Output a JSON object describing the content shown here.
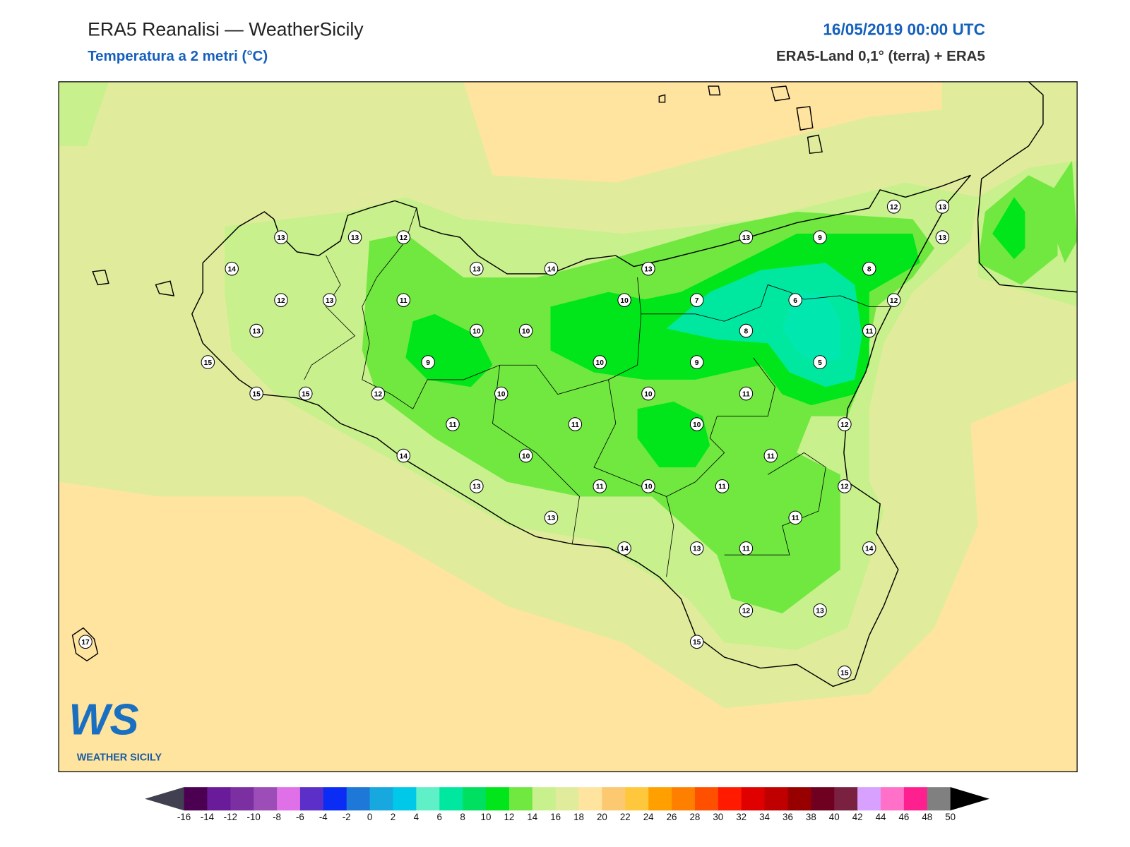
{
  "header": {
    "title": "ERA5 Reanalisi — WeatherSicily",
    "subtitle": "Temperatura a 2 metri (°C)",
    "date": "16/05/2019 00:00 UTC",
    "source": "ERA5-Land 0,1° (terra) + ERA5"
  },
  "logo": {
    "mark": "WS",
    "name": "WEATHER SICILY"
  },
  "stations": [
    13,
    13,
    12,
    14,
    12,
    13,
    11,
    13,
    15,
    15,
    15,
    12,
    9,
    10,
    10,
    13,
    14,
    13,
    10,
    10,
    10,
    11,
    11,
    14,
    10,
    13,
    13,
    11,
    10,
    14,
    13,
    11,
    11,
    11,
    10,
    10,
    11,
    9,
    7,
    8,
    6,
    5,
    9,
    13,
    8,
    12,
    13,
    13,
    12,
    11,
    12,
    12,
    11,
    14,
    12,
    13,
    15,
    15,
    17
  ],
  "colorbar": {
    "ticks": [
      -16,
      -14,
      -12,
      -10,
      -8,
      -6,
      -4,
      -2,
      0,
      2,
      4,
      6,
      8,
      10,
      12,
      14,
      16,
      18,
      20,
      22,
      24,
      26,
      28,
      30,
      32,
      34,
      36,
      38,
      40,
      42,
      44,
      46,
      48,
      50
    ],
    "colors": [
      "#4b0052",
      "#6a1b9a",
      "#7b2fa0",
      "#9c4db8",
      "#e070e8",
      "#5b2fc8",
      "#0a2cf5",
      "#1e78d8",
      "#18a8e0",
      "#00c8e8",
      "#60f0c8",
      "#00e8a0",
      "#00e060",
      "#00e61a",
      "#70e840",
      "#c8f08c",
      "#e0ec9c",
      "#ffe4a0",
      "#fcc870",
      "#ffc83c",
      "#ffa000",
      "#ff8000",
      "#ff5000",
      "#ff1a00",
      "#e00000",
      "#c00000",
      "#980000",
      "#700020",
      "#7a2040",
      "#d8a0ff",
      "#ff70c8",
      "#ff2090",
      "#808080"
    ],
    "under_color": "#404050",
    "over_color": "#000000"
  }
}
